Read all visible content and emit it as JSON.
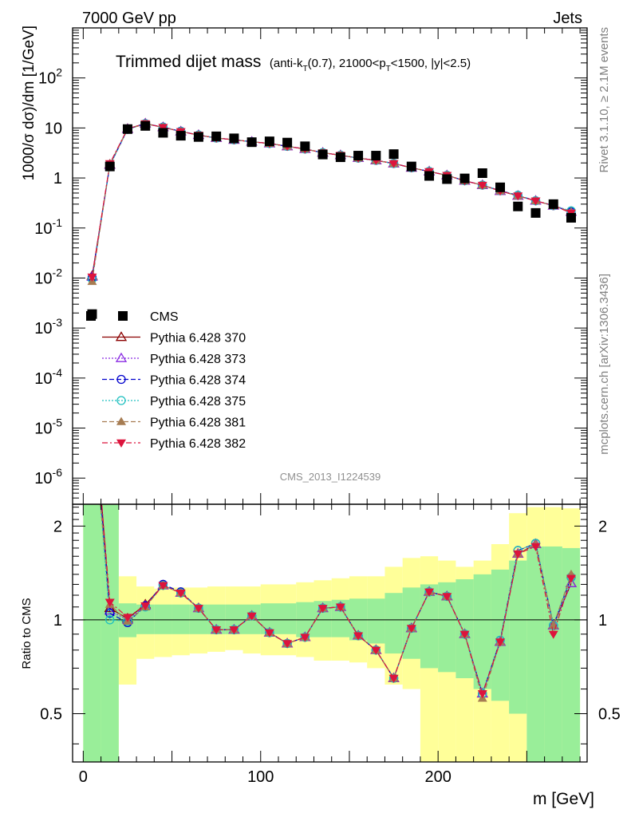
{
  "header": {
    "left": "7000 GeV pp",
    "right": "Jets"
  },
  "side_labels": {
    "top": "Rivet 3.1.10, ≥ 2.1M events",
    "bottom": "mcplots.cern.ch [arXiv:1306.3436]"
  },
  "analysis_id": "CMS_2013_I1224539",
  "chart_data": [
    {
      "type": "scatter",
      "panel": "main",
      "title": "Trimmed dijet mass",
      "title_cuts": {
        "pre": "(anti-k",
        "sub1": "T",
        "mid": "(0.7), 21000<p",
        "sub2": "T",
        "post": "<1500, |y|<2.5)"
      },
      "ylabel": "1000/σ dσ)/dm [1/GeV]",
      "xlabel": "m [GeV]",
      "xlim": [
        -6,
        284
      ],
      "ylim": [
        3e-07,
        1000
      ],
      "yscale": "log",
      "x_ticks": [
        "0",
        "100",
        "200"
      ],
      "y_ticks": [
        {
          "base": "10",
          "exp": "-6",
          "value": 1e-06
        },
        {
          "base": "10",
          "exp": "-5",
          "value": 1e-05
        },
        {
          "base": "10",
          "exp": "-4",
          "value": 0.0001
        },
        {
          "base": "10",
          "exp": "-3",
          "value": 0.001
        },
        {
          "base": "10",
          "exp": "-2",
          "value": 0.01
        },
        {
          "base": "10",
          "exp": "-1",
          "value": 0.1
        },
        {
          "base": "1",
          "exp": "",
          "value": 1
        },
        {
          "base": "10",
          "exp": "",
          "value": 10
        },
        {
          "base": "10",
          "exp": "2",
          "value": 100
        }
      ],
      "legend_position": "left-middle",
      "x": [
        5,
        15,
        25,
        35,
        45,
        55,
        65,
        75,
        85,
        95,
        105,
        115,
        125,
        135,
        145,
        155,
        165,
        175,
        185,
        195,
        205,
        215,
        225,
        235,
        245,
        255,
        265,
        275
      ],
      "data": {
        "name": "CMS",
        "values": [
          0.0019,
          1.7,
          9.5,
          11.0,
          8.0,
          7.0,
          6.6,
          6.8,
          6.2,
          5.2,
          5.4,
          5.1,
          4.3,
          2.95,
          2.6,
          2.8,
          2.8,
          3.0,
          1.7,
          1.1,
          0.95,
          0.98,
          1.25,
          0.65,
          0.27,
          0.2,
          0.3,
          0.16
        ]
      },
      "series": [
        {
          "name": "Pythia 6.428 370",
          "color": "#8b0000",
          "marker": "triangle-open",
          "dash": "solid",
          "values": [
            0.011,
            1.85,
            9.6,
            12.3,
            10.3,
            8.5,
            7.2,
            6.3,
            5.8,
            5.3,
            4.9,
            4.3,
            3.8,
            3.2,
            2.85,
            2.5,
            2.25,
            1.95,
            1.6,
            1.35,
            1.13,
            0.88,
            0.72,
            0.55,
            0.44,
            0.35,
            0.28,
            0.21
          ]
        },
        {
          "name": "Pythia 6.428 373",
          "color": "#8a2be2",
          "marker": "triangle-open",
          "dash": "dotted",
          "values": [
            0.0105,
            1.82,
            9.5,
            12.2,
            10.3,
            8.5,
            7.2,
            6.3,
            5.8,
            5.3,
            4.9,
            4.3,
            3.8,
            3.2,
            2.85,
            2.5,
            2.25,
            1.95,
            1.6,
            1.35,
            1.13,
            0.88,
            0.72,
            0.55,
            0.44,
            0.35,
            0.28,
            0.21
          ]
        },
        {
          "name": "Pythia 6.428 374",
          "color": "#0000cd",
          "marker": "circle-open",
          "dash": "dashed",
          "values": [
            0.0102,
            1.78,
            9.4,
            12.2,
            10.4,
            8.6,
            7.2,
            6.3,
            5.8,
            5.3,
            4.9,
            4.3,
            3.8,
            3.2,
            2.85,
            2.5,
            2.25,
            1.95,
            1.6,
            1.35,
            1.13,
            0.88,
            0.72,
            0.56,
            0.45,
            0.35,
            0.28,
            0.21
          ]
        },
        {
          "name": "Pythia 6.428 375",
          "color": "#20c0c0",
          "marker": "circle-open",
          "dash": "dotted",
          "values": [
            0.0095,
            1.75,
            9.4,
            12.1,
            10.3,
            8.5,
            7.2,
            6.3,
            5.8,
            5.3,
            4.9,
            4.3,
            3.8,
            3.2,
            2.85,
            2.5,
            2.25,
            1.95,
            1.6,
            1.35,
            1.13,
            0.88,
            0.72,
            0.56,
            0.45,
            0.35,
            0.28,
            0.22
          ]
        },
        {
          "name": "Pythia 6.428 381",
          "color": "#a67c52",
          "marker": "triangle-filled",
          "dash": "dashed",
          "values": [
            0.0085,
            1.9,
            9.4,
            12.1,
            10.3,
            8.5,
            7.2,
            6.3,
            5.8,
            5.3,
            4.9,
            4.3,
            3.8,
            3.2,
            2.85,
            2.5,
            2.25,
            1.95,
            1.6,
            1.35,
            1.13,
            0.88,
            0.72,
            0.55,
            0.44,
            0.35,
            0.28,
            0.21
          ]
        },
        {
          "name": "Pythia 6.428 382",
          "color": "#dc143c",
          "marker": "triangle-down-filled",
          "dash": "dashdot",
          "values": [
            0.0105,
            1.95,
            9.7,
            12.2,
            10.3,
            8.5,
            7.2,
            6.3,
            5.8,
            5.3,
            4.9,
            4.3,
            3.8,
            3.2,
            2.85,
            2.5,
            2.25,
            1.95,
            1.6,
            1.35,
            1.13,
            0.88,
            0.72,
            0.55,
            0.44,
            0.35,
            0.28,
            0.2
          ]
        }
      ]
    },
    {
      "type": "line",
      "panel": "ratio",
      "ylabel": "Ratio to CMS",
      "xlabel": "m [GeV]",
      "xlim": [
        -6,
        284
      ],
      "ylim": [
        0.35,
        2.35
      ],
      "yscale": "log",
      "y_ticks": [
        "0.5",
        "1",
        "2"
      ],
      "x": [
        5,
        15,
        25,
        35,
        45,
        55,
        65,
        75,
        85,
        95,
        105,
        115,
        125,
        135,
        145,
        155,
        165,
        175,
        185,
        195,
        205,
        215,
        225,
        235,
        245,
        255,
        265,
        275
      ],
      "bands": [
        {
          "name": "yellow",
          "color": "#ffff99",
          "edges": [
            0,
            10,
            20,
            30,
            40,
            50,
            60,
            70,
            80,
            90,
            100,
            110,
            120,
            130,
            140,
            150,
            160,
            170,
            180,
            190,
            200,
            210,
            220,
            230,
            240,
            250,
            260,
            270,
            280
          ],
          "lo": [
            0.2,
            0.2,
            0.62,
            0.75,
            0.76,
            0.77,
            0.78,
            0.79,
            0.8,
            0.78,
            0.77,
            0.77,
            0.76,
            0.74,
            0.74,
            0.73,
            0.7,
            0.62,
            0.6,
            0.2,
            0.2,
            0.2,
            0.2,
            0.2,
            0.2,
            0.2,
            0.2,
            0.2
          ],
          "hi": [
            3.0,
            3.0,
            1.38,
            1.28,
            1.26,
            1.27,
            1.27,
            1.28,
            1.28,
            1.28,
            1.3,
            1.3,
            1.32,
            1.34,
            1.36,
            1.38,
            1.38,
            1.48,
            1.58,
            1.6,
            1.55,
            1.48,
            1.55,
            1.75,
            2.2,
            2.3,
            2.3,
            2.28
          ]
        },
        {
          "name": "green",
          "color": "#99ee99",
          "edges": [
            0,
            10,
            20,
            30,
            40,
            50,
            60,
            70,
            80,
            90,
            100,
            110,
            120,
            130,
            140,
            150,
            160,
            170,
            180,
            190,
            200,
            210,
            220,
            230,
            240,
            250,
            260,
            270,
            280
          ],
          "lo": [
            0.2,
            0.2,
            0.88,
            0.9,
            0.9,
            0.9,
            0.9,
            0.9,
            0.9,
            0.9,
            0.9,
            0.9,
            0.88,
            0.88,
            0.88,
            0.86,
            0.84,
            0.78,
            0.75,
            0.7,
            0.68,
            0.65,
            0.6,
            0.55,
            0.5,
            0.2,
            0.2,
            0.2
          ],
          "hi": [
            3.0,
            3.0,
            1.13,
            1.12,
            1.12,
            1.12,
            1.12,
            1.12,
            1.12,
            1.12,
            1.13,
            1.13,
            1.14,
            1.15,
            1.16,
            1.17,
            1.17,
            1.22,
            1.27,
            1.3,
            1.32,
            1.35,
            1.4,
            1.45,
            1.55,
            1.72,
            1.72,
            1.7
          ]
        }
      ],
      "series": [
        {
          "name": "Pythia 6.428 370",
          "values": [
            5.8,
            1.09,
            1.01,
            1.12,
            1.29,
            1.22,
            1.09,
            0.93,
            0.93,
            1.03,
            0.91,
            0.84,
            0.88,
            1.09,
            1.1,
            0.89,
            0.8,
            0.65,
            0.94,
            1.23,
            1.19,
            0.9,
            0.58,
            0.85,
            1.63,
            1.75,
            0.96,
            1.31
          ]
        },
        {
          "name": "Pythia 6.428 373",
          "values": [
            5.5,
            1.07,
            1.0,
            1.11,
            1.29,
            1.22,
            1.09,
            0.93,
            0.93,
            1.03,
            0.91,
            0.84,
            0.88,
            1.09,
            1.1,
            0.89,
            0.8,
            0.65,
            0.94,
            1.23,
            1.19,
            0.9,
            0.58,
            0.85,
            1.63,
            1.75,
            0.96,
            1.31
          ]
        },
        {
          "name": "Pythia 6.428 374",
          "values": [
            5.4,
            1.05,
            0.98,
            1.11,
            1.3,
            1.23,
            1.09,
            0.93,
            0.93,
            1.03,
            0.91,
            0.84,
            0.88,
            1.09,
            1.1,
            0.89,
            0.8,
            0.65,
            0.94,
            1.23,
            1.19,
            0.9,
            0.58,
            0.86,
            1.67,
            1.76,
            0.96,
            1.37
          ]
        },
        {
          "name": "Pythia 6.428 375",
          "values": [
            5.0,
            1.0,
            0.99,
            1.1,
            1.29,
            1.22,
            1.09,
            0.93,
            0.93,
            1.03,
            0.91,
            0.84,
            0.88,
            1.09,
            1.1,
            0.89,
            0.8,
            0.65,
            0.94,
            1.23,
            1.19,
            0.9,
            0.58,
            0.86,
            1.67,
            1.76,
            0.96,
            1.37
          ]
        },
        {
          "name": "Pythia 6.428 381",
          "values": [
            4.5,
            1.12,
            0.99,
            1.1,
            1.29,
            1.22,
            1.09,
            0.93,
            0.93,
            1.03,
            0.91,
            0.84,
            0.88,
            1.09,
            1.1,
            0.89,
            0.8,
            0.65,
            0.94,
            1.23,
            1.19,
            0.9,
            0.56,
            0.85,
            1.63,
            1.75,
            0.96,
            1.4
          ]
        },
        {
          "name": "Pythia 6.428 382",
          "values": [
            5.6,
            1.14,
            1.02,
            1.11,
            1.29,
            1.22,
            1.09,
            0.93,
            0.93,
            1.03,
            0.91,
            0.84,
            0.88,
            1.09,
            1.1,
            0.89,
            0.8,
            0.65,
            0.94,
            1.23,
            1.19,
            0.9,
            0.58,
            0.85,
            1.63,
            1.72,
            0.9,
            1.36
          ]
        }
      ]
    }
  ]
}
